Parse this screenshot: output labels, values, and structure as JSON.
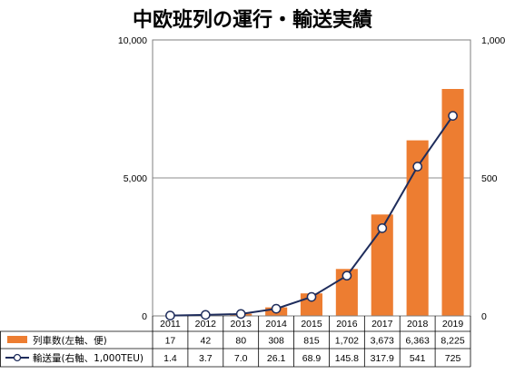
{
  "chart_data": {
    "type": "bar+line",
    "title": "中欧班列の運行・輸送実績",
    "categories": [
      "2011",
      "2012",
      "2013",
      "2014",
      "2015",
      "2016",
      "2017",
      "2018",
      "2019"
    ],
    "series": [
      {
        "name": "列車数(左軸、便)",
        "type": "bar",
        "axis": "left",
        "color": "#ed7d31",
        "values": [
          17,
          42,
          80,
          308,
          815,
          1702,
          3673,
          6363,
          8225
        ],
        "labels": [
          "17",
          "42",
          "80",
          "308",
          "815",
          "1,702",
          "3,673",
          "6,363",
          "8,225"
        ]
      },
      {
        "name": "輸送量(右軸、1,000TEU)",
        "type": "line",
        "axis": "right",
        "color": "#1f2d5c",
        "values": [
          1.4,
          3.7,
          7.0,
          26.1,
          68.9,
          145.8,
          317.9,
          541,
          725
        ],
        "labels": [
          "1.4",
          "3.7",
          "7.0",
          "26.1",
          "68.9",
          "145.8",
          "317.9",
          "541",
          "725"
        ]
      }
    ],
    "left_axis": {
      "ylim": [
        0,
        10000
      ],
      "ticks": [
        0,
        5000,
        10000
      ],
      "tick_labels": [
        "0",
        "5,000",
        "10,000"
      ]
    },
    "right_axis": {
      "ylim": [
        0,
        1000
      ],
      "ticks": [
        0,
        500,
        1000
      ],
      "tick_labels": [
        "0",
        "500",
        "1,000"
      ]
    },
    "grid": "horizontal-major",
    "legend": "data-table-below"
  }
}
